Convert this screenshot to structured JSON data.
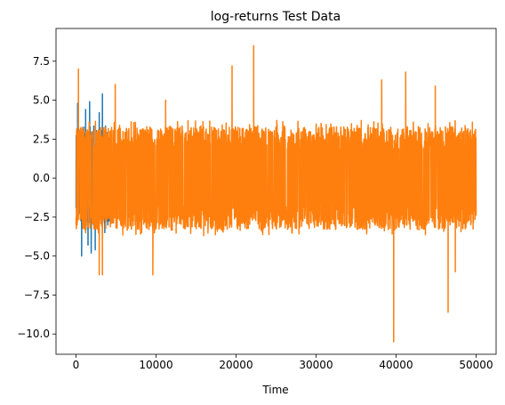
{
  "chart_data": {
    "type": "line",
    "title": "log-returns Test Data",
    "xlabel": "Time",
    "ylabel": "",
    "xlim": [
      -2500,
      52500
    ],
    "ylim": [
      -11.3,
      9.6
    ],
    "x_ticks": [
      0,
      10000,
      20000,
      30000,
      40000,
      50000
    ],
    "x_tick_labels": [
      "0",
      "10000",
      "20000",
      "30000",
      "40000",
      "50000"
    ],
    "y_ticks": [
      7.5,
      5.0,
      2.5,
      0.0,
      -2.5,
      -5.0,
      -7.5,
      -10.0
    ],
    "y_tick_labels": [
      "7.5",
      "5.0",
      "2.5",
      "0.0",
      "−2.5",
      "−5.0",
      "−7.5",
      "−10.0"
    ],
    "grid": false,
    "legend": "none",
    "series": [
      {
        "color": "#1f77b4",
        "x_range": [
          0,
          4200
        ],
        "typical_band": [
          -3.0,
          3.0
        ],
        "spikes": [
          {
            "x": 200,
            "y": 4.8
          },
          {
            "x": 700,
            "y": -5.0
          },
          {
            "x": 1200,
            "y": 4.4
          },
          {
            "x": 1500,
            "y": -4.3
          },
          {
            "x": 1700,
            "y": 4.9
          },
          {
            "x": 1900,
            "y": -4.8
          },
          {
            "x": 2400,
            "y": -4.6
          },
          {
            "x": 2900,
            "y": 4.2
          },
          {
            "x": 3300,
            "y": 5.4
          },
          {
            "x": 3600,
            "y": -3.5
          }
        ]
      },
      {
        "color": "#ff7f0e",
        "x_range": [
          0,
          50000
        ],
        "typical_band": [
          -3.3,
          3.3
        ],
        "spikes": [
          {
            "x": 300,
            "y": 7.0
          },
          {
            "x": 2900,
            "y": -6.2
          },
          {
            "x": 3300,
            "y": -6.2
          },
          {
            "x": 4900,
            "y": 6.0
          },
          {
            "x": 9600,
            "y": -6.2
          },
          {
            "x": 11200,
            "y": 5.0
          },
          {
            "x": 19500,
            "y": 7.2
          },
          {
            "x": 22200,
            "y": 8.5
          },
          {
            "x": 38200,
            "y": 6.3
          },
          {
            "x": 39700,
            "y": -10.5
          },
          {
            "x": 41200,
            "y": 6.8
          },
          {
            "x": 44900,
            "y": 5.9
          },
          {
            "x": 46500,
            "y": -8.6
          },
          {
            "x": 47400,
            "y": -6.0
          }
        ]
      }
    ]
  }
}
